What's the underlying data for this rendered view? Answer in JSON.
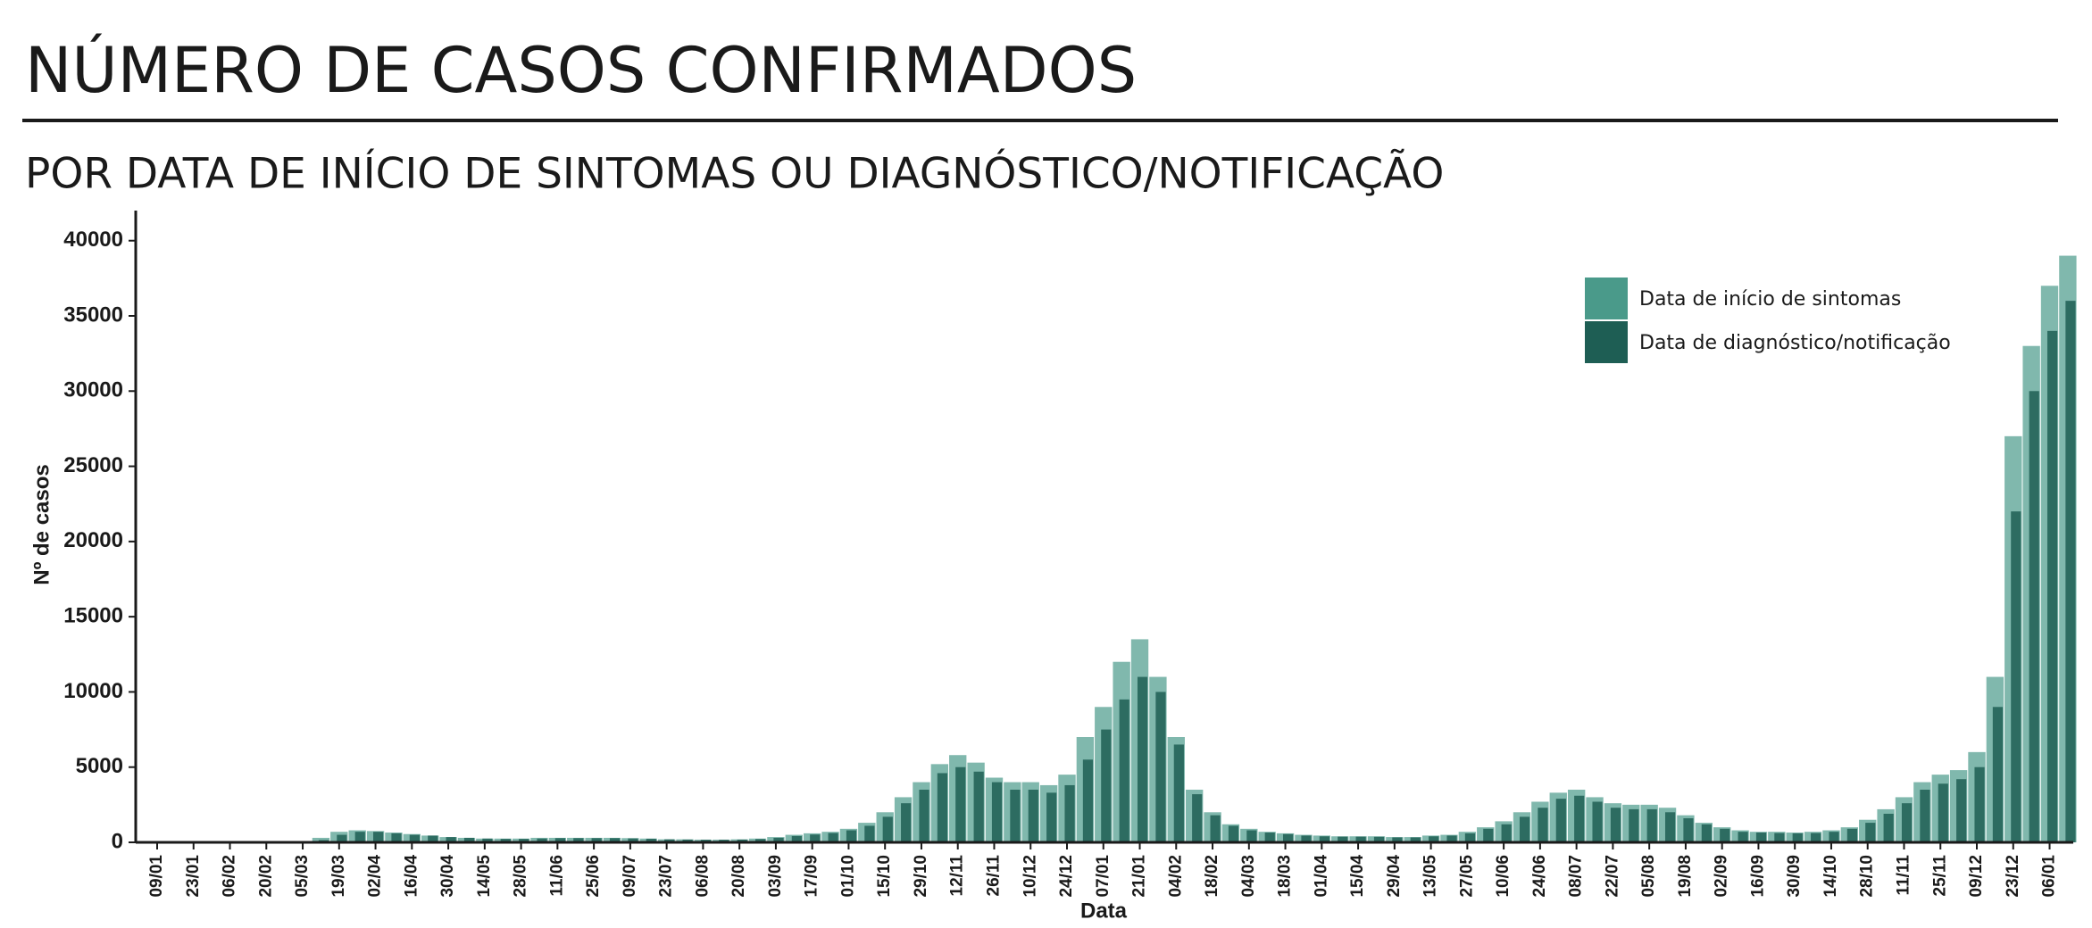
{
  "chart_data": {
    "type": "bar",
    "title": "NÚMERO DE CASOS CONFIRMADOS",
    "subtitle": "POR DATA DE INÍCIO DE SINTOMAS OU DIAGNÓSTICO/NOTIFICAÇÃO",
    "x_label": "Data",
    "y_label": "Nº de casos",
    "categories": [
      "09/01",
      null,
      "23/01",
      null,
      "06/02",
      null,
      "20/02",
      null,
      "05/03",
      null,
      "19/03",
      null,
      "02/04",
      null,
      "16/04",
      null,
      "30/04",
      null,
      "14/05",
      null,
      "28/05",
      null,
      "11/06",
      null,
      "25/06",
      null,
      "09/07",
      null,
      "23/07",
      null,
      "06/08",
      null,
      "20/08",
      null,
      "03/09",
      null,
      "17/09",
      null,
      "01/10",
      null,
      "15/10",
      null,
      "29/10",
      null,
      "12/11",
      null,
      "26/11",
      null,
      "10/12",
      null,
      "24/12",
      null,
      "07/01",
      null,
      "21/01",
      null,
      "04/02",
      null,
      "18/02",
      null,
      "04/03",
      null,
      "18/03",
      null,
      "01/04",
      null,
      "15/04",
      null,
      "29/04",
      null,
      "13/05",
      null,
      "27/05",
      null,
      "10/06",
      null,
      "24/06",
      null,
      "08/07",
      null,
      "22/07",
      null,
      "05/08",
      null,
      "19/08",
      null,
      "02/09",
      null,
      "16/09",
      null,
      "30/09",
      null,
      "14/10",
      null,
      "28/10",
      null,
      "11/11",
      null,
      "25/11",
      null,
      "09/12",
      null,
      "23/12",
      null,
      "06/01",
      null
    ],
    "series": [
      {
        "name": "Data de início de sintomas",
        "color": "#4a9a8a",
        "values": [
          0,
          0,
          0,
          0,
          0,
          0,
          0,
          0,
          50,
          300,
          700,
          800,
          750,
          650,
          550,
          450,
          350,
          300,
          250,
          250,
          250,
          300,
          300,
          300,
          300,
          300,
          280,
          250,
          200,
          200,
          180,
          180,
          200,
          250,
          350,
          500,
          600,
          700,
          900,
          1300,
          2000,
          3000,
          4000,
          5200,
          5800,
          5300,
          4300,
          4000,
          4000,
          3800,
          4500,
          7000,
          9000,
          12000,
          13500,
          11000,
          7000,
          3500,
          2000,
          1200,
          900,
          700,
          600,
          500,
          450,
          400,
          400,
          400,
          350,
          350,
          450,
          500,
          700,
          1000,
          1400,
          2000,
          2700,
          3300,
          3500,
          3000,
          2600,
          2500,
          2500,
          2300,
          1800,
          1300,
          1000,
          800,
          700,
          700,
          650,
          700,
          800,
          1000,
          1500,
          2200,
          3000,
          4000,
          4500,
          4800,
          6000,
          11000,
          27000,
          33000,
          37000,
          39000
        ]
      },
      {
        "name": "Data de diagnóstico/notificação",
        "color": "#1e5e54",
        "values": [
          0,
          0,
          0,
          0,
          0,
          0,
          0,
          0,
          0,
          150,
          500,
          700,
          700,
          600,
          500,
          450,
          350,
          300,
          250,
          230,
          230,
          250,
          280,
          280,
          280,
          280,
          260,
          240,
          200,
          180,
          170,
          170,
          180,
          220,
          300,
          420,
          520,
          620,
          800,
          1100,
          1700,
          2600,
          3500,
          4600,
          5000,
          4700,
          4000,
          3500,
          3500,
          3300,
          3800,
          5500,
          7500,
          9500,
          11000,
          10000,
          6500,
          3200,
          1800,
          1100,
          800,
          650,
          550,
          450,
          400,
          380,
          380,
          370,
          330,
          330,
          400,
          450,
          600,
          900,
          1200,
          1700,
          2300,
          2900,
          3100,
          2700,
          2300,
          2200,
          2200,
          2000,
          1600,
          1200,
          900,
          700,
          650,
          620,
          600,
          620,
          700,
          900,
          1300,
          1900,
          2600,
          3500,
          3900,
          4200,
          5000,
          9000,
          22000,
          30000,
          34000,
          36000
        ]
      }
    ],
    "ylim": [
      0,
      42000
    ],
    "yticks": [
      0,
      5000,
      10000,
      15000,
      20000,
      25000,
      30000,
      35000,
      40000
    ],
    "legend": "top-right"
  }
}
